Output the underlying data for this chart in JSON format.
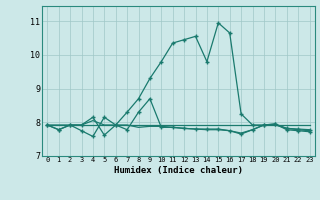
{
  "xlabel": "Humidex (Indice chaleur)",
  "bg_color": "#cce8e8",
  "grid_color": "#a0c8c8",
  "line_color": "#1a7a6e",
  "xlim": [
    -0.5,
    23.5
  ],
  "ylim": [
    7.0,
    11.45
  ],
  "yticks": [
    7,
    8,
    9,
    10,
    11
  ],
  "xticks": [
    0,
    1,
    2,
    3,
    4,
    5,
    6,
    7,
    8,
    9,
    10,
    11,
    12,
    13,
    14,
    15,
    16,
    17,
    18,
    19,
    20,
    21,
    22,
    23
  ],
  "line1_x": [
    0,
    1,
    2,
    3,
    4,
    5,
    6,
    7,
    8,
    9,
    10,
    11,
    12,
    13,
    14,
    15,
    16,
    17,
    18,
    19,
    20,
    21,
    22,
    23
  ],
  "line1_y": [
    7.92,
    7.78,
    7.92,
    7.92,
    8.15,
    7.62,
    7.92,
    8.3,
    8.7,
    9.3,
    9.8,
    10.35,
    10.45,
    10.55,
    9.8,
    10.95,
    10.65,
    8.25,
    7.92,
    7.92,
    7.95,
    7.82,
    7.8,
    7.78
  ],
  "line2_x": [
    0,
    1,
    2,
    3,
    4,
    5,
    6,
    7,
    8,
    9,
    10,
    11,
    12,
    13,
    14,
    15,
    16,
    17,
    18,
    19,
    20,
    21,
    22,
    23
  ],
  "line2_y": [
    7.92,
    7.92,
    7.92,
    7.92,
    7.92,
    7.92,
    7.92,
    7.92,
    7.92,
    7.92,
    7.92,
    7.92,
    7.92,
    7.92,
    7.92,
    7.92,
    7.92,
    7.92,
    7.92,
    7.92,
    7.92,
    7.92,
    7.92,
    7.92
  ],
  "line3_x": [
    0,
    1,
    2,
    3,
    4,
    5,
    6,
    7,
    8,
    9,
    10,
    11,
    12,
    13,
    14,
    15,
    16,
    17,
    18,
    19,
    20,
    21,
    22,
    23
  ],
  "line3_y": [
    7.92,
    7.78,
    7.92,
    7.75,
    7.58,
    8.15,
    7.92,
    7.78,
    8.3,
    8.7,
    7.85,
    7.85,
    7.82,
    7.8,
    7.8,
    7.8,
    7.75,
    7.65,
    7.78,
    7.92,
    7.95,
    7.78,
    7.75,
    7.72
  ],
  "line4_x": [
    0,
    1,
    2,
    3,
    4,
    5,
    6,
    7,
    8,
    9,
    10,
    11,
    12,
    13,
    14,
    15,
    16,
    17,
    18,
    19,
    20,
    21,
    22,
    23
  ],
  "line4_y": [
    7.92,
    7.92,
    7.92,
    7.92,
    8.05,
    7.92,
    7.92,
    7.92,
    7.85,
    7.88,
    7.88,
    7.85,
    7.82,
    7.8,
    7.78,
    7.78,
    7.75,
    7.68,
    7.78,
    7.92,
    7.92,
    7.82,
    7.78,
    7.75
  ]
}
